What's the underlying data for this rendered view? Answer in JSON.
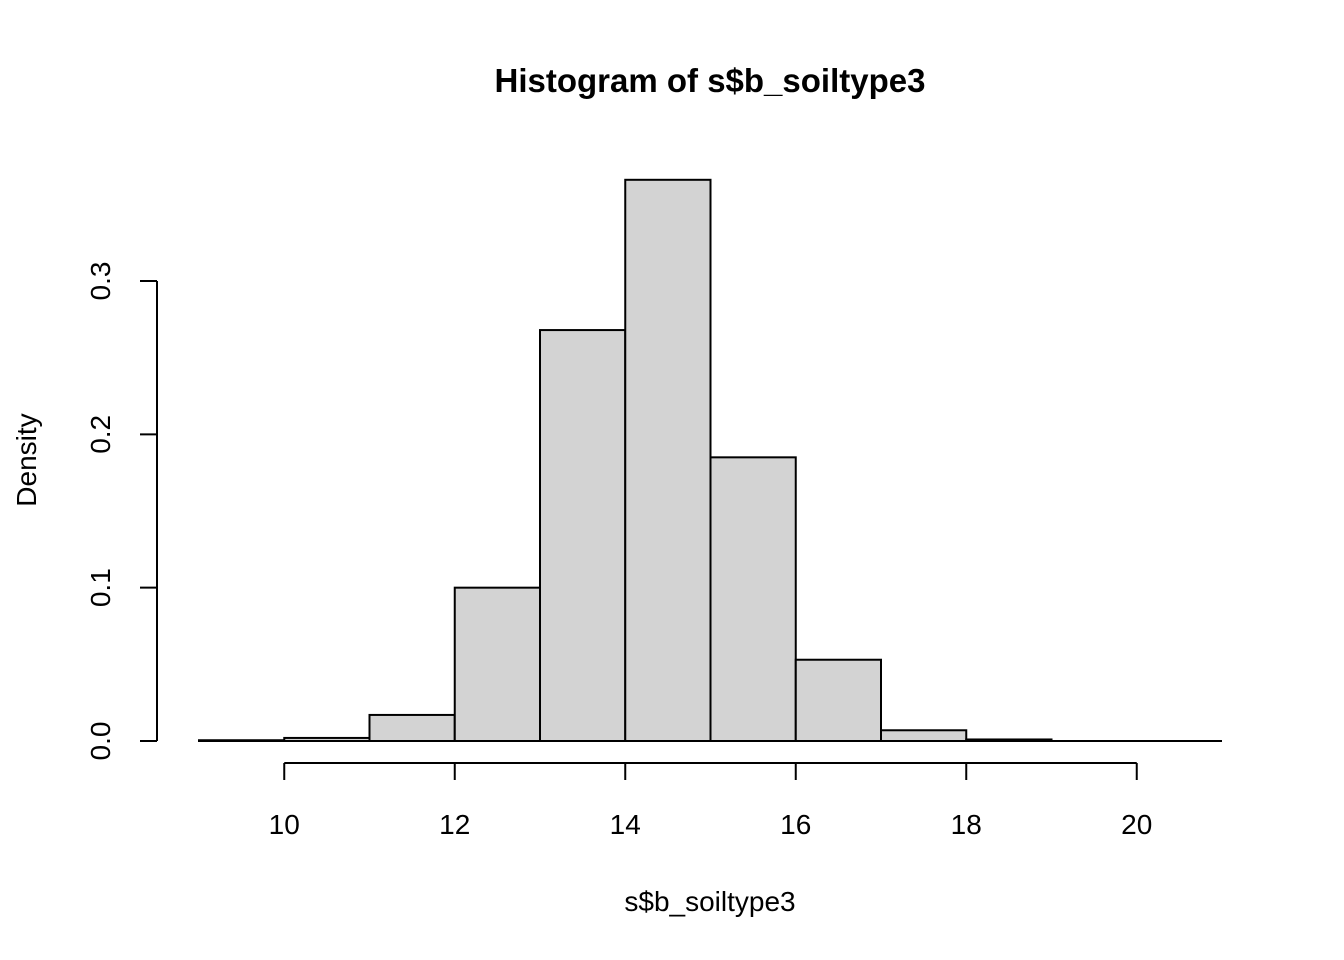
{
  "chart_data": {
    "type": "bar",
    "title": "Histogram of s$b_soiltype3",
    "xlabel": "s$b_soiltype3",
    "ylabel": "Density",
    "bar_color": "#d3d3d3",
    "edge_color": "#000000",
    "bins": [
      {
        "from": 9,
        "to": 10,
        "density": 0.0005
      },
      {
        "from": 10,
        "to": 11,
        "density": 0.002
      },
      {
        "from": 11,
        "to": 12,
        "density": 0.017
      },
      {
        "from": 12,
        "to": 13,
        "density": 0.1
      },
      {
        "from": 13,
        "to": 14,
        "density": 0.268
      },
      {
        "from": 14,
        "to": 15,
        "density": 0.366
      },
      {
        "from": 15,
        "to": 16,
        "density": 0.185
      },
      {
        "from": 16,
        "to": 17,
        "density": 0.053
      },
      {
        "from": 17,
        "to": 18,
        "density": 0.007
      },
      {
        "from": 18,
        "to": 19,
        "density": 0.001
      },
      {
        "from": 19,
        "to": 20,
        "density": 0.0
      },
      {
        "from": 20,
        "to": 21,
        "density": 0.0
      }
    ],
    "xlim": [
      9,
      21
    ],
    "ylim": [
      0,
      0.3
    ],
    "x_ticks": [
      10,
      12,
      14,
      16,
      18,
      20
    ],
    "x_tick_labels": [
      "10",
      "12",
      "14",
      "16",
      "18",
      "20"
    ],
    "y_ticks": [
      0.0,
      0.1,
      0.2,
      0.3
    ],
    "y_tick_labels": [
      "0.0",
      "0.1",
      "0.2",
      "0.3"
    ],
    "grid": false,
    "legend": "none"
  }
}
